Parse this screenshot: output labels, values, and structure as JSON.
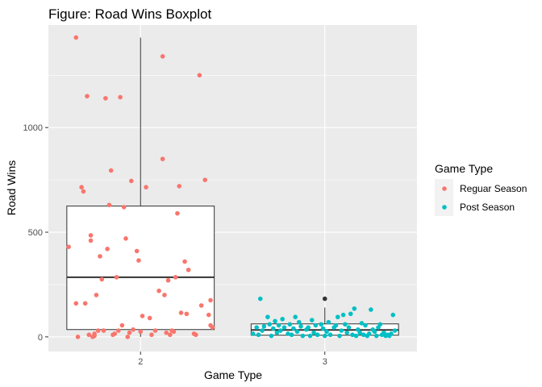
{
  "chart_data": {
    "type": "boxplot",
    "title": "Figure: Road Wins Boxplot",
    "xlabel": "Game Type",
    "ylabel": "Road Wins",
    "categories": [
      "2",
      "3"
    ],
    "y_ticks": [
      0,
      500,
      1000
    ],
    "y_tick_labels": [
      "0",
      "500",
      "1000"
    ],
    "ylim": [
      -70,
      1490
    ],
    "grid": true,
    "legend": {
      "title": "Game Type",
      "placement": "right",
      "entries": [
        {
          "label": "Reguar Season",
          "color": "#F8766D"
        },
        {
          "label": "Post Season",
          "color": "#00BFC4"
        }
      ]
    },
    "boxes": [
      {
        "category": "2",
        "min": 0,
        "q1": 35,
        "median": 285,
        "q3": 625,
        "max": 1430,
        "outliers": []
      },
      {
        "category": "3",
        "min": 0,
        "q1": 8,
        "median": 33,
        "q3": 62,
        "max": 140,
        "outliers": [
          182
        ]
      }
    ],
    "series": [
      {
        "name": "Reguar Season",
        "color": "#F8766D",
        "category": "2",
        "jitter": [
          -0.39,
          -0.35,
          -0.35,
          -0.34,
          -0.32,
          -0.31,
          -0.3,
          -0.29,
          -0.28,
          -0.27,
          -0.27,
          -0.26,
          -0.25,
          -0.25,
          -0.24,
          -0.23,
          -0.22,
          -0.21,
          -0.2,
          -0.19,
          -0.18,
          -0.17,
          -0.16,
          -0.15,
          -0.14,
          -0.13,
          -0.12,
          -0.11,
          -0.1,
          -0.09,
          -0.08,
          -0.07,
          -0.06,
          -0.05,
          -0.04,
          -0.02,
          -0.01,
          0.0,
          0.01,
          0.03,
          0.05,
          0.06,
          0.08,
          0.1,
          0.12,
          0.12,
          0.13,
          0.14,
          0.15,
          0.16,
          0.17,
          0.18,
          0.19,
          0.2,
          0.21,
          0.22,
          0.24,
          0.25,
          0.26,
          0.29,
          0.3,
          0.32,
          0.33,
          0.35,
          0.37,
          0.38,
          0.38,
          0.39
        ],
        "values": [
          430,
          160,
          1430,
          0,
          715,
          695,
          160,
          1150,
          10,
          460,
          485,
          0,
          5,
          15,
          200,
          30,
          385,
          275,
          30,
          1140,
          420,
          630,
          795,
          10,
          15,
          285,
          30,
          1145,
          55,
          620,
          470,
          0,
          20,
          745,
          35,
          410,
          365,
          25,
          100,
          715,
          90,
          10,
          30,
          220,
          850,
          1340,
          200,
          20,
          270,
          10,
          30,
          25,
          285,
          590,
          720,
          115,
          360,
          110,
          320,
          15,
          10,
          1250,
          150,
          750,
          105,
          55,
          175,
          45
        ]
      },
      {
        "name": "Post Season",
        "color": "#00BFC4",
        "category": "3",
        "jitter": [
          -0.39,
          -0.37,
          -0.36,
          -0.35,
          -0.34,
          -0.33,
          -0.31,
          -0.3,
          -0.29,
          -0.28,
          -0.27,
          -0.26,
          -0.25,
          -0.24,
          -0.23,
          -0.22,
          -0.2,
          -0.19,
          -0.18,
          -0.17,
          -0.16,
          -0.15,
          -0.14,
          -0.13,
          -0.12,
          -0.1,
          -0.09,
          -0.08,
          -0.07,
          -0.06,
          -0.05,
          -0.04,
          -0.02,
          -0.01,
          0.0,
          0.01,
          0.02,
          0.03,
          0.05,
          0.06,
          0.07,
          0.08,
          0.09,
          0.1,
          0.11,
          0.12,
          0.13,
          0.14,
          0.15,
          0.16,
          0.17,
          0.18,
          0.19,
          0.2,
          0.21,
          0.22,
          0.23,
          0.24,
          0.25,
          0.26,
          0.27,
          0.28,
          0.29,
          0.3,
          0.31,
          0.32,
          0.33,
          0.34,
          0.35,
          0.36,
          0.37,
          0.38
        ],
        "values": [
          15,
          45,
          10,
          182,
          30,
          50,
          95,
          60,
          5,
          40,
          75,
          20,
          55,
          30,
          85,
          45,
          15,
          60,
          10,
          40,
          95,
          25,
          70,
          50,
          5,
          35,
          45,
          5,
          80,
          20,
          55,
          10,
          60,
          40,
          5,
          25,
          70,
          10,
          45,
          55,
          95,
          5,
          30,
          105,
          60,
          20,
          45,
          110,
          10,
          135,
          5,
          35,
          20,
          65,
          10,
          55,
          5,
          15,
          130,
          35,
          25,
          5,
          45,
          60,
          10,
          20,
          5,
          10,
          5,
          15,
          105,
          30
        ]
      }
    ]
  }
}
